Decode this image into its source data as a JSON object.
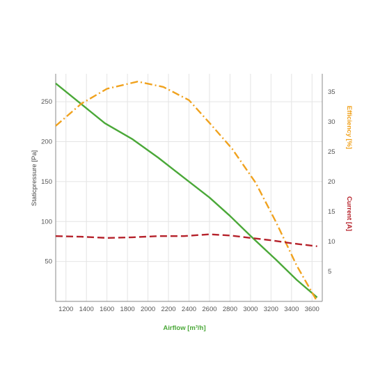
{
  "chart_data": {
    "type": "line",
    "xlabel": "Airflow [m³/h]",
    "ylabel_left": "Staticpressure [Pa]",
    "ylabel_right_1": "Efficiency [%]",
    "ylabel_right_2": "Current [A]",
    "x_ticks": [
      1200,
      1400,
      1600,
      1800,
      2000,
      2200,
      2400,
      2600,
      2800,
      3000,
      3200,
      3400,
      3600
    ],
    "x_tick_labels": [
      "1200",
      "1400",
      "1600",
      "1800",
      "2000",
      "2200",
      "2400",
      "2600",
      "2800",
      "3000",
      "3200",
      "3400",
      "3600"
    ],
    "xlim": [
      1100,
      3700
    ],
    "left_ticks": [
      50,
      100,
      150,
      200,
      250
    ],
    "left_tick_labels": [
      "50",
      "100",
      "150",
      "200",
      "250"
    ],
    "ylim_left": [
      0,
      285
    ],
    "right_ticks": [
      5,
      10,
      15,
      20,
      25,
      30,
      35
    ],
    "right_tick_labels": [
      "5",
      "10",
      "15",
      "20",
      "25",
      "30",
      "35"
    ],
    "ylim_right": [
      0,
      38
    ],
    "grid": true,
    "colors": {
      "pressure": "#4aa838",
      "efficiency": "#f0a21e",
      "current": "#b5212a",
      "axis": "#888888",
      "grid": "#e4e4e4"
    },
    "series": [
      {
        "key": "pressure",
        "axis": "left",
        "style": "solid",
        "x": [
          1100,
          1350,
          1580,
          1850,
          2100,
          2350,
          2600,
          2800,
          3000,
          3250,
          3450,
          3650
        ],
        "y": [
          273,
          247,
          223,
          203,
          180,
          155,
          130,
          107,
          82,
          52,
          27,
          5
        ]
      },
      {
        "key": "efficiency",
        "axis": "right",
        "style": "dashdot",
        "x": [
          1100,
          1350,
          1600,
          1900,
          2150,
          2400,
          2600,
          2820,
          3050,
          3250,
          3450,
          3650
        ],
        "y": [
          29.3,
          33.0,
          35.5,
          36.7,
          35.8,
          33.6,
          29.8,
          25.5,
          19.8,
          13.2,
          6.0,
          0
        ]
      },
      {
        "key": "current",
        "axis": "right",
        "style": "dashed",
        "x": [
          1100,
          1350,
          1600,
          1850,
          2100,
          2350,
          2600,
          2800,
          3000,
          3200,
          3400,
          3650
        ],
        "y": [
          10.9,
          10.8,
          10.6,
          10.7,
          10.9,
          10.9,
          11.2,
          11.0,
          10.6,
          10.2,
          9.7,
          9.2
        ]
      }
    ]
  }
}
